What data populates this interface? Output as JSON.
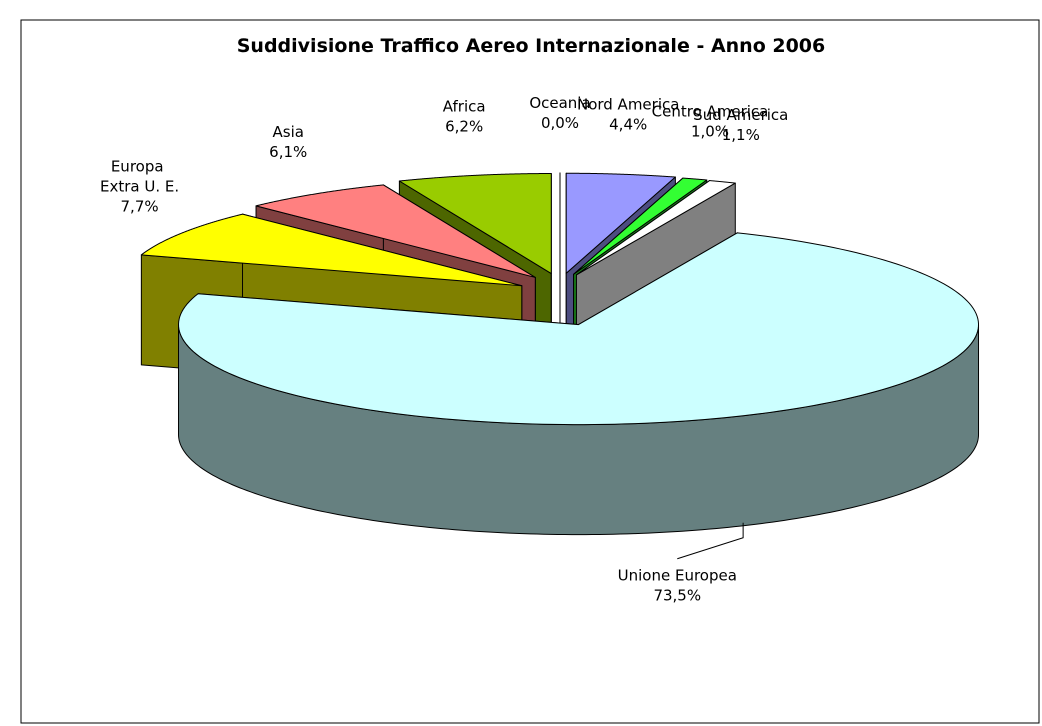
{
  "chart_data": {
    "type": "pie3d",
    "title": "Suddivisione Traffico Aereo Internazionale - Anno 2006",
    "categories": [
      "Nord America",
      "Centro America",
      "Sud America",
      "Unione Europea",
      "Europa Extra U. E.",
      "Asia",
      "Africa",
      "Oceania"
    ],
    "values": [
      4.4,
      1.0,
      1.1,
      73.5,
      7.7,
      6.1,
      6.2,
      0.0
    ],
    "value_labels": [
      "4,4%",
      "1,0%",
      "1,1%",
      "73,5%",
      "7,7%",
      "6,1%",
      "6,2%",
      "0,0%"
    ],
    "colors": [
      "#9999ff",
      "#33ff33",
      "#ffffff",
      "#ccffff",
      "#ffff00",
      "#ff8080",
      "#99cc00",
      "#ffffff"
    ],
    "side_colors": [
      "#4d4d80",
      "#1a801a",
      "#808080",
      "#668080",
      "#808000",
      "#804040",
      "#4d6600",
      "#ffffff"
    ]
  }
}
